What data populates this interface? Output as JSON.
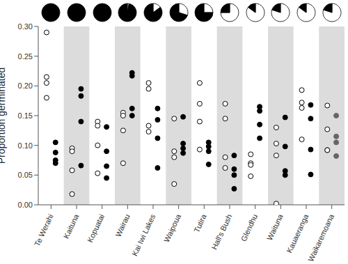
{
  "chart_data": {
    "type": "scatter",
    "y_label": "Proportion germinated",
    "categories": [
      "Te Werahi",
      "Kaituna",
      "Kopuatai",
      "Wairau",
      "Kai Iwi Lakes",
      "Waipoua",
      "Tutira",
      "Hall's Bush",
      "Glendhu",
      "Waituna",
      "Kauaeranga",
      "Waikaremoana"
    ],
    "series": [
      {
        "marker": "open",
        "color": "#000000",
        "values": [
          [
            0.29,
            0.215,
            0.205,
            0.18
          ],
          [
            0.095,
            0.09,
            0.058,
            0.018
          ],
          [
            0.14,
            0.133,
            0.1,
            0.053
          ],
          [
            0.155,
            0.15,
            0.125,
            0.07
          ],
          [
            0.205,
            0.195,
            0.133,
            0.123
          ],
          [
            0.145,
            0.09,
            0.08,
            0.035
          ],
          [
            0.205,
            0.17,
            0.14,
            0.093
          ],
          [
            0.17,
            0.145,
            0.08,
            0.062
          ],
          [
            0.085,
            0.07,
            0.067,
            0.048
          ],
          [
            0.13,
            0.103,
            0.083,
            0.002
          ],
          [
            0.193,
            0.172,
            0.163,
            0.11
          ],
          [
            0.167,
            0.127,
            0.092,
            0.092
          ]
        ]
      },
      {
        "marker": "filled",
        "colors": [
          "#000000",
          "#000000",
          "#000000",
          "#000000",
          "#000000",
          "#000000",
          "#000000",
          "#000000",
          "#000000",
          "#000000",
          "#000000",
          "#666666"
        ],
        "values": [
          [
            0.105,
            0.088,
            0.075,
            0.07
          ],
          [
            0.195,
            0.183,
            0.14,
            0.066
          ],
          [
            0.131,
            0.09,
            0.065,
            0.045
          ],
          [
            0.222,
            0.217,
            0.162,
            0.15
          ],
          [
            0.162,
            0.143,
            0.112,
            0.062
          ],
          [
            0.148,
            0.103,
            0.095,
            0.087
          ],
          [
            0.105,
            0.098,
            0.09,
            0.068
          ],
          [
            0.083,
            0.06,
            0.05,
            0.027
          ],
          [
            0.165,
            0.158,
            0.135,
            0.112
          ],
          [
            0.147,
            0.098,
            0.057,
            0.05
          ],
          [
            0.168,
            0.145,
            0.093,
            0.051
          ],
          [
            0.15,
            0.115,
            0.105,
            0.082
          ]
        ]
      }
    ],
    "pie_fractions": [
      1,
      1,
      1,
      0.97,
      0.85,
      0.7,
      0.75,
      0.25,
      0.15,
      0.2,
      0.15,
      0.2
    ],
    "ylim": [
      0,
      0.3
    ],
    "yticks": [
      {
        "value": 0,
        "label": "0.00"
      },
      {
        "value": 0.05,
        "label": "0.05"
      },
      {
        "value": 0.1,
        "label": "0.10"
      },
      {
        "value": 0.15,
        "label": "0.15"
      },
      {
        "value": 0.2,
        "label": "0.20"
      },
      {
        "value": 0.25,
        "label": "0.25"
      },
      {
        "value": 0.3,
        "label": "0.30"
      }
    ],
    "grid": false
  }
}
